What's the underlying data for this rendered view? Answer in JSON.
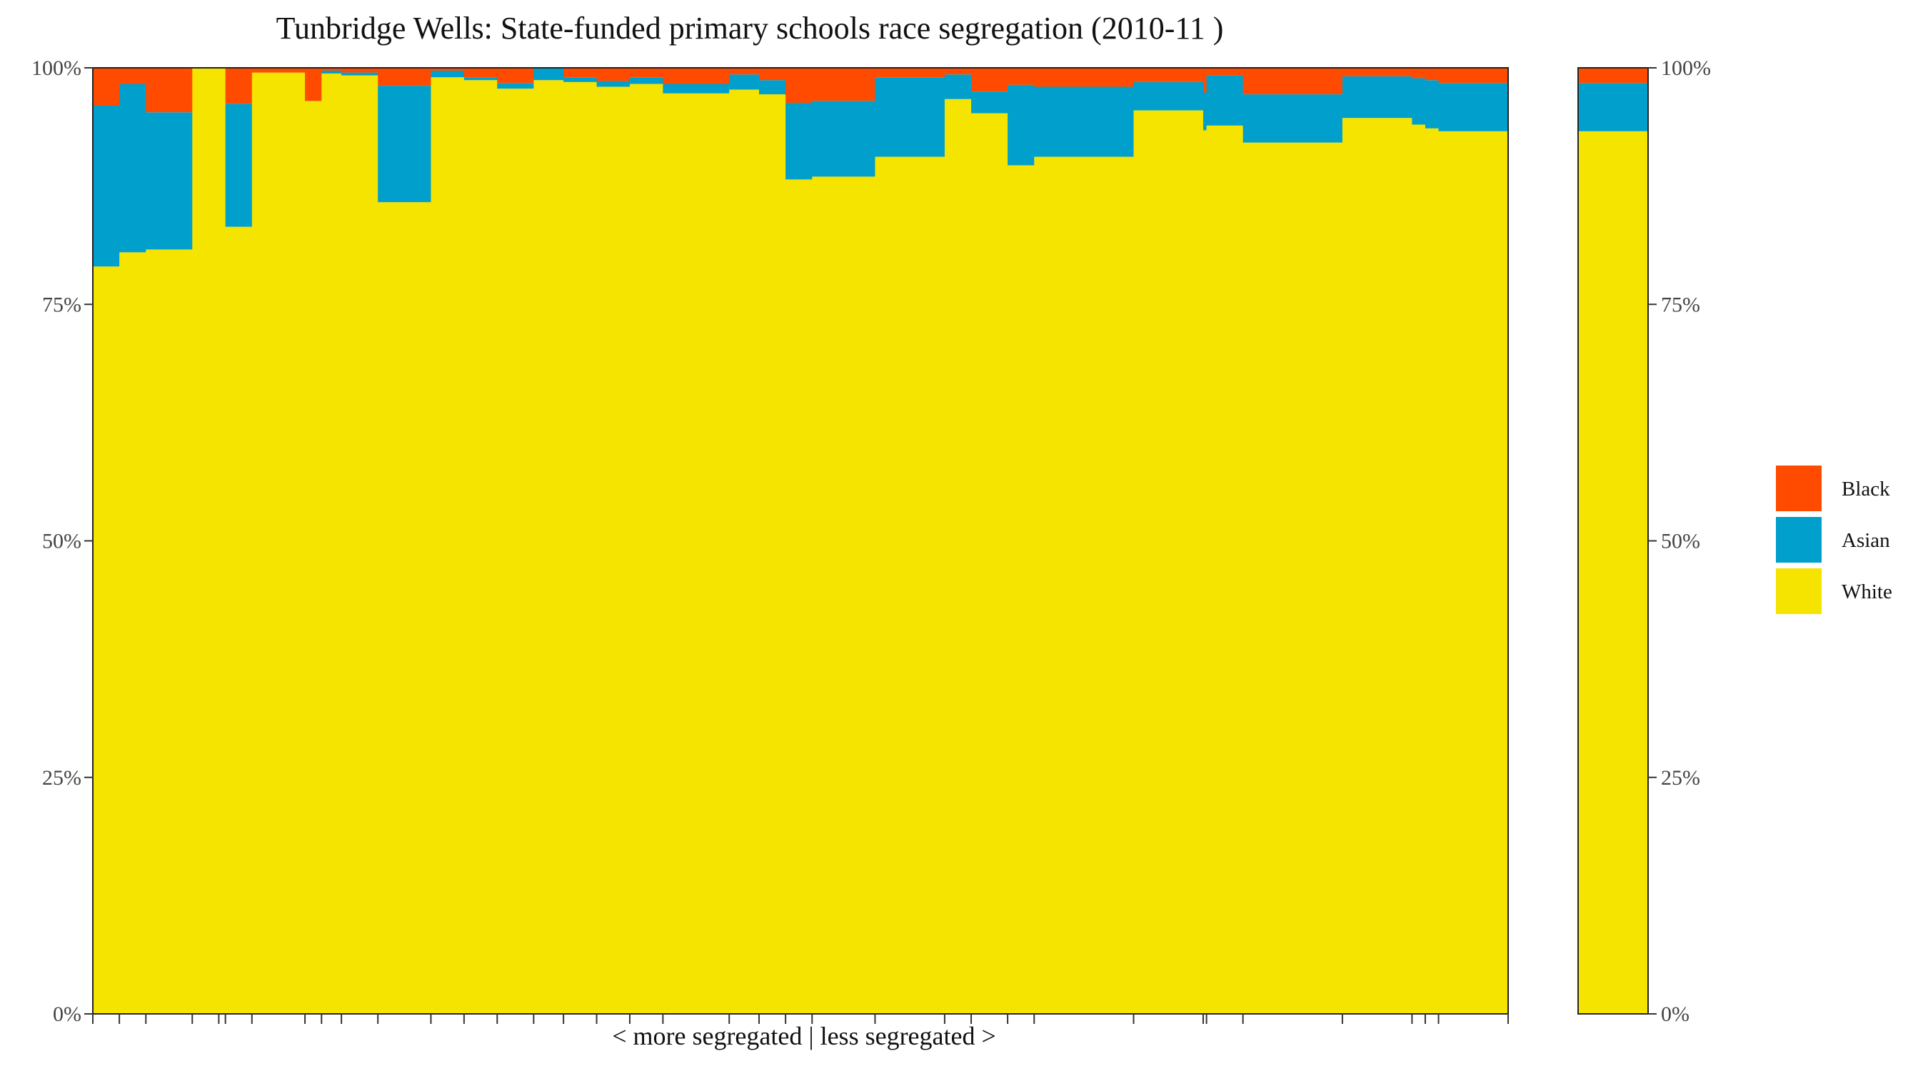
{
  "chart_data": {
    "type": "bar",
    "subtype": "stacked-variable-width-100pct",
    "title": "Tunbridge Wells: State-funded primary schools race segregation (2010-11 )",
    "xlabel": "< more segregated | less segregated >",
    "ylabel": "",
    "ylim": [
      0,
      100
    ],
    "yticks": [
      "0%",
      "25%",
      "50%",
      "75%",
      "100%"
    ],
    "ytick_values": [
      0,
      25,
      50,
      75,
      100
    ],
    "legend_position": "right",
    "series": [
      {
        "name": "Black",
        "color": "#FF4B00"
      },
      {
        "name": "Asian",
        "color": "#009FCC"
      },
      {
        "name": "White",
        "color": "#F5E300"
      }
    ],
    "schools": [
      {
        "w": 0.8,
        "white": 79.0,
        "asian": 17.0,
        "black": 4.0
      },
      {
        "w": 0.8,
        "white": 80.5,
        "asian": 17.8,
        "black": 1.7
      },
      {
        "w": 1.4,
        "white": 80.8,
        "asian": 14.5,
        "black": 4.7
      },
      {
        "w": 0.8,
        "white": 100,
        "asian": 0,
        "black": 0
      },
      {
        "w": 0.2,
        "white": 100,
        "asian": 0,
        "black": 0
      },
      {
        "w": 0.8,
        "white": 83.2,
        "asian": 13.0,
        "black": 3.8
      },
      {
        "w": 1.6,
        "white": 99.5,
        "asian": 0,
        "black": 0.5
      },
      {
        "w": 0.5,
        "white": 96.5,
        "asian": 0,
        "black": 3.5
      },
      {
        "w": 0.6,
        "white": 99.4,
        "asian": 0.3,
        "black": 0.3
      },
      {
        "w": 1.1,
        "white": 99.2,
        "asian": 0.3,
        "black": 0.5
      },
      {
        "w": 1.6,
        "white": 85.8,
        "asian": 12.3,
        "black": 1.9
      },
      {
        "w": 1.0,
        "white": 99.0,
        "asian": 0.7,
        "black": 0.3
      },
      {
        "w": 1.0,
        "white": 98.7,
        "asian": 0.3,
        "black": 1.0
      },
      {
        "w": 1.1,
        "white": 97.8,
        "asian": 0.6,
        "black": 1.6
      },
      {
        "w": 0.9,
        "white": 98.7,
        "asian": 1.3,
        "black": 0
      },
      {
        "w": 1.0,
        "white": 98.5,
        "asian": 0.5,
        "black": 1.0
      },
      {
        "w": 1.0,
        "white": 98.0,
        "asian": 0.6,
        "black": 1.4
      },
      {
        "w": 1.0,
        "white": 98.3,
        "asian": 0.7,
        "black": 1.0
      },
      {
        "w": 2.0,
        "white": 97.3,
        "asian": 1.0,
        "black": 1.7
      },
      {
        "w": 0.9,
        "white": 97.7,
        "asian": 1.6,
        "black": 0.7
      },
      {
        "w": 0.8,
        "white": 97.2,
        "asian": 1.5,
        "black": 1.3
      },
      {
        "w": 0.8,
        "white": 88.2,
        "asian": 8.1,
        "black": 3.7
      },
      {
        "w": 1.9,
        "white": 88.5,
        "asian": 8.0,
        "black": 3.5
      },
      {
        "w": 2.1,
        "white": 90.6,
        "asian": 8.4,
        "black": 1.0
      },
      {
        "w": 0.8,
        "white": 96.7,
        "asian": 2.6,
        "black": 0.7
      },
      {
        "w": 1.1,
        "white": 95.2,
        "asian": 2.3,
        "black": 2.5
      },
      {
        "w": 0.8,
        "white": 89.7,
        "asian": 8.5,
        "black": 1.8
      },
      {
        "w": 3.0,
        "white": 90.6,
        "asian": 7.4,
        "black": 2.0
      },
      {
        "w": 2.1,
        "white": 95.5,
        "asian": 3.0,
        "black": 1.5
      },
      {
        "w": 0.1,
        "white": 93.4,
        "asian": 4.0,
        "black": 2.6
      },
      {
        "w": 1.1,
        "white": 93.9,
        "asian": 5.3,
        "black": 0.8
      },
      {
        "w": 3.0,
        "white": 92.1,
        "asian": 5.1,
        "black": 2.8
      },
      {
        "w": 2.1,
        "white": 94.7,
        "asian": 4.4,
        "black": 0.9
      },
      {
        "w": 0.4,
        "white": 94.0,
        "asian": 4.9,
        "black": 1.1
      },
      {
        "w": 0.4,
        "white": 93.6,
        "asian": 5.1,
        "black": 1.3
      },
      {
        "w": 2.1,
        "white": 93.3,
        "asian": 5.1,
        "black": 1.6
      }
    ],
    "overall": {
      "white": 93.3,
      "asian": 5.1,
      "black": 1.6
    }
  }
}
